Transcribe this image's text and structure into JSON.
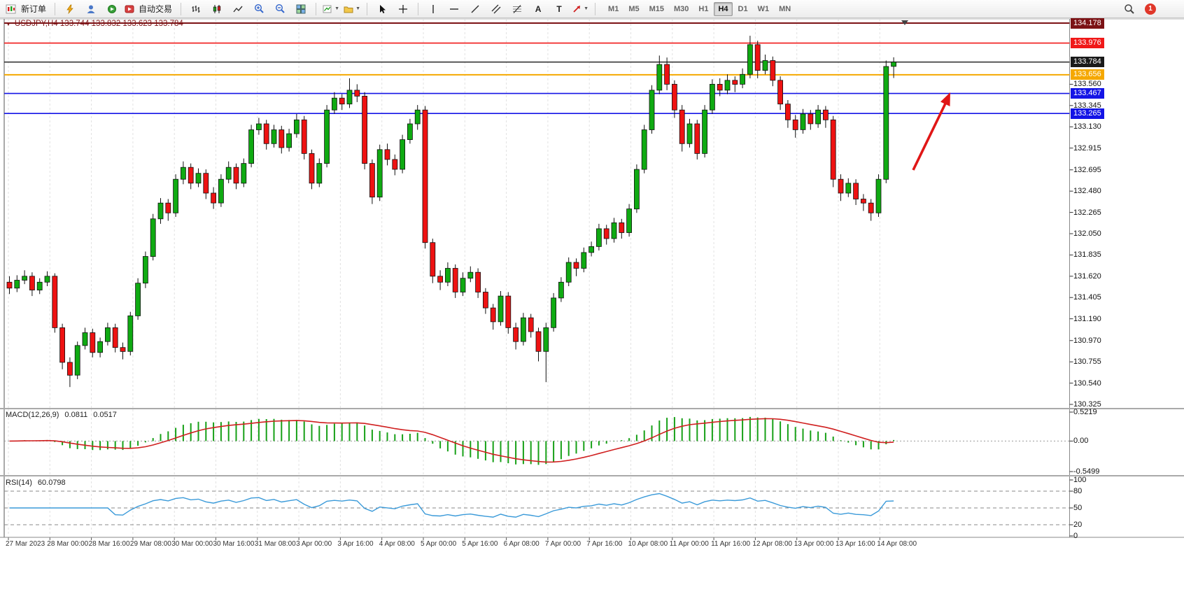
{
  "toolbar": {
    "new_order": "新订单",
    "auto_trading": "自动交易",
    "text_tool": "A",
    "label_tool": "T",
    "timeframes": [
      "M1",
      "M5",
      "M15",
      "M30",
      "H1",
      "H4",
      "D1",
      "W1",
      "MN"
    ],
    "active_timeframe": "H4",
    "notification_count": "1"
  },
  "chart_data": {
    "type": "candlestick",
    "symbol": "USDJPY",
    "timeframe": "H4",
    "title": "USDJPY,H4 133.744 133.832 133.623 133.784",
    "ohlc_display": {
      "open": "133.744",
      "high": "133.832",
      "low": "133.623",
      "close": "133.784"
    },
    "ylim": [
      130.325,
      134.178
    ],
    "price_ticks": [
      "133.560",
      "133.345",
      "133.130",
      "132.915",
      "132.695",
      "132.480",
      "132.265",
      "132.050",
      "131.835",
      "131.620",
      "131.405",
      "131.190",
      "130.970",
      "130.755",
      "130.540",
      "130.325"
    ],
    "time_labels": [
      "27 Mar 2023",
      "28 Mar 00:00",
      "28 Mar 16:00",
      "29 Mar 08:00",
      "30 Mar 00:00",
      "30 Mar 16:00",
      "31 Mar 08:00",
      "3 Apr 00:00",
      "3 Apr 16:00",
      "4 Apr 08:00",
      "5 Apr 00:00",
      "5 Apr 16:00",
      "6 Apr 08:00",
      "7 Apr 00:00",
      "7 Apr 16:00",
      "10 Apr 08:00",
      "11 Apr 00:00",
      "11 Apr 16:00",
      "12 Apr 08:00",
      "13 Apr 00:00",
      "13 Apr 16:00",
      "14 Apr 08:00"
    ],
    "level_lines": [
      {
        "price": 134.178,
        "label": "134.178",
        "color": "#7c1215",
        "width": 2
      },
      {
        "price": 133.976,
        "label": "133.976",
        "color": "#f01818",
        "width": 1.6
      },
      {
        "price": 133.784,
        "label": "133.784",
        "color": "#1a1a1a",
        "width": 1.4
      },
      {
        "price": 133.656,
        "label": "133.656",
        "color": "#f5a800",
        "width": 2
      },
      {
        "price": 133.467,
        "label": "133.467",
        "color": "#1414e6",
        "width": 1.6
      },
      {
        "price": 133.265,
        "label": "133.265",
        "color": "#1414e6",
        "width": 1.6
      }
    ],
    "colors": {
      "up": "#0faa12",
      "down": "#ee1212",
      "macd_histogram": "#17a017",
      "macd_signal": "#d02020",
      "rsi_line": "#3a9ad9",
      "grid": "#e2e2e2"
    },
    "candles": [
      [
        131.56,
        131.62,
        131.44,
        131.5
      ],
      [
        131.5,
        131.63,
        131.46,
        131.58
      ],
      [
        131.58,
        131.68,
        131.54,
        131.62
      ],
      [
        131.62,
        131.66,
        131.42,
        131.48
      ],
      [
        131.48,
        131.6,
        131.44,
        131.56
      ],
      [
        131.56,
        131.67,
        131.52,
        131.62
      ],
      [
        131.62,
        131.65,
        131.05,
        131.1
      ],
      [
        131.1,
        131.14,
        130.68,
        130.75
      ],
      [
        130.75,
        130.8,
        130.5,
        130.62
      ],
      [
        130.62,
        130.96,
        130.58,
        130.92
      ],
      [
        130.92,
        131.1,
        130.88,
        131.05
      ],
      [
        131.05,
        131.09,
        130.8,
        130.85
      ],
      [
        130.85,
        131.0,
        130.8,
        130.96
      ],
      [
        130.96,
        131.15,
        130.92,
        131.1
      ],
      [
        131.1,
        131.14,
        130.85,
        130.9
      ],
      [
        130.9,
        130.95,
        130.78,
        130.86
      ],
      [
        130.86,
        131.26,
        130.82,
        131.22
      ],
      [
        131.22,
        131.6,
        131.18,
        131.55
      ],
      [
        131.55,
        131.87,
        131.5,
        131.82
      ],
      [
        131.82,
        132.25,
        131.78,
        132.2
      ],
      [
        132.2,
        132.41,
        132.15,
        132.36
      ],
      [
        132.36,
        132.4,
        132.18,
        132.26
      ],
      [
        132.26,
        132.65,
        132.22,
        132.6
      ],
      [
        132.6,
        132.78,
        132.55,
        132.72
      ],
      [
        132.72,
        132.76,
        132.5,
        132.56
      ],
      [
        132.56,
        132.71,
        132.52,
        132.66
      ],
      [
        132.66,
        132.7,
        132.4,
        132.46
      ],
      [
        132.46,
        132.52,
        132.3,
        132.36
      ],
      [
        132.36,
        132.65,
        132.32,
        132.6
      ],
      [
        132.6,
        132.78,
        132.56,
        132.72
      ],
      [
        132.72,
        132.76,
        132.5,
        132.56
      ],
      [
        132.56,
        132.81,
        132.52,
        132.76
      ],
      [
        132.76,
        133.15,
        132.72,
        133.1
      ],
      [
        133.1,
        133.22,
        133.05,
        133.16
      ],
      [
        133.16,
        133.2,
        132.9,
        132.96
      ],
      [
        132.96,
        133.15,
        132.92,
        133.1
      ],
      [
        133.1,
        133.14,
        132.86,
        132.92
      ],
      [
        132.92,
        133.11,
        132.88,
        133.06
      ],
      [
        133.06,
        133.26,
        133.02,
        133.2
      ],
      [
        133.2,
        133.24,
        132.8,
        132.86
      ],
      [
        132.86,
        132.9,
        132.5,
        132.56
      ],
      [
        132.56,
        132.81,
        132.52,
        132.76
      ],
      [
        132.76,
        133.35,
        132.72,
        133.3
      ],
      [
        133.3,
        133.48,
        133.26,
        133.42
      ],
      [
        133.42,
        133.46,
        133.3,
        133.36
      ],
      [
        133.36,
        133.62,
        133.32,
        133.5
      ],
      [
        133.5,
        133.56,
        133.38,
        133.44
      ],
      [
        133.44,
        133.48,
        132.7,
        132.76
      ],
      [
        132.76,
        132.8,
        132.35,
        132.42
      ],
      [
        132.42,
        132.95,
        132.38,
        132.9
      ],
      [
        132.9,
        132.96,
        132.74,
        132.8
      ],
      [
        132.8,
        132.85,
        132.64,
        132.7
      ],
      [
        132.7,
        133.05,
        132.66,
        133.0
      ],
      [
        133.0,
        133.21,
        132.96,
        133.16
      ],
      [
        133.16,
        133.35,
        133.1,
        133.3
      ],
      [
        133.3,
        133.34,
        131.9,
        131.96
      ],
      [
        131.96,
        132.0,
        131.55,
        131.62
      ],
      [
        131.62,
        131.68,
        131.48,
        131.56
      ],
      [
        131.56,
        131.76,
        131.52,
        131.7
      ],
      [
        131.7,
        131.74,
        131.4,
        131.46
      ],
      [
        131.46,
        131.66,
        131.42,
        131.6
      ],
      [
        131.6,
        131.72,
        131.56,
        131.66
      ],
      [
        131.66,
        131.7,
        131.4,
        131.46
      ],
      [
        131.46,
        131.5,
        131.24,
        131.3
      ],
      [
        131.3,
        131.34,
        131.08,
        131.16
      ],
      [
        131.16,
        131.47,
        131.12,
        131.42
      ],
      [
        131.42,
        131.46,
        131.04,
        131.1
      ],
      [
        131.1,
        131.15,
        130.88,
        130.96
      ],
      [
        130.96,
        131.25,
        130.92,
        131.2
      ],
      [
        131.2,
        131.24,
        131.0,
        131.06
      ],
      [
        131.06,
        131.1,
        130.76,
        130.86
      ],
      [
        130.86,
        131.15,
        130.55,
        131.1
      ],
      [
        131.1,
        131.45,
        131.06,
        131.4
      ],
      [
        131.4,
        131.61,
        131.36,
        131.56
      ],
      [
        131.56,
        131.81,
        131.52,
        131.76
      ],
      [
        131.76,
        131.8,
        131.62,
        131.7
      ],
      [
        131.7,
        131.91,
        131.66,
        131.86
      ],
      [
        131.86,
        131.97,
        131.82,
        131.92
      ],
      [
        131.92,
        132.15,
        131.88,
        132.1
      ],
      [
        132.1,
        132.14,
        131.94,
        132.0
      ],
      [
        132.0,
        132.21,
        131.96,
        132.16
      ],
      [
        132.16,
        132.2,
        132.0,
        132.06
      ],
      [
        132.06,
        132.35,
        132.02,
        132.3
      ],
      [
        132.3,
        132.75,
        132.26,
        132.7
      ],
      [
        132.7,
        133.15,
        132.66,
        133.1
      ],
      [
        133.1,
        133.55,
        133.06,
        133.5
      ],
      [
        133.5,
        133.85,
        133.46,
        133.76
      ],
      [
        133.76,
        133.83,
        133.5,
        133.56
      ],
      [
        133.56,
        133.6,
        133.22,
        133.3
      ],
      [
        133.3,
        133.35,
        132.88,
        132.96
      ],
      [
        132.96,
        133.21,
        132.92,
        133.16
      ],
      [
        133.16,
        133.2,
        132.8,
        132.86
      ],
      [
        132.86,
        133.35,
        132.82,
        133.3
      ],
      [
        133.3,
        133.61,
        133.26,
        133.56
      ],
      [
        133.56,
        133.62,
        133.44,
        133.5
      ],
      [
        133.5,
        133.66,
        133.46,
        133.6
      ],
      [
        133.6,
        133.64,
        133.48,
        133.56
      ],
      [
        133.56,
        133.72,
        133.52,
        133.66
      ],
      [
        133.66,
        134.05,
        133.62,
        133.96
      ],
      [
        133.96,
        134.0,
        133.62,
        133.7
      ],
      [
        133.7,
        133.86,
        133.66,
        133.8
      ],
      [
        133.8,
        133.84,
        133.54,
        133.6
      ],
      [
        133.6,
        133.64,
        133.3,
        133.36
      ],
      [
        133.36,
        133.4,
        133.12,
        133.2
      ],
      [
        133.2,
        133.25,
        133.02,
        133.1
      ],
      [
        133.1,
        133.31,
        133.06,
        133.26
      ],
      [
        133.26,
        133.3,
        133.1,
        133.16
      ],
      [
        133.16,
        133.35,
        133.12,
        133.3
      ],
      [
        133.3,
        133.34,
        133.12,
        133.2
      ],
      [
        133.2,
        133.24,
        132.52,
        132.6
      ],
      [
        132.6,
        132.65,
        132.38,
        132.46
      ],
      [
        132.46,
        132.61,
        132.42,
        132.56
      ],
      [
        132.56,
        132.6,
        132.34,
        132.4
      ],
      [
        132.4,
        132.45,
        132.28,
        132.36
      ],
      [
        132.36,
        132.4,
        132.18,
        132.26
      ],
      [
        132.26,
        132.65,
        132.22,
        132.6
      ],
      [
        132.6,
        133.8,
        132.56,
        133.74
      ],
      [
        133.74,
        133.832,
        133.623,
        133.784
      ]
    ],
    "indicators": {
      "macd": {
        "label": "MACD(12,26,9)",
        "main": "0.0811",
        "signal": "0.0517",
        "params": [
          12,
          26,
          9
        ],
        "ylim": [
          -0.5499,
          0.5219
        ],
        "axis": [
          "0.5219",
          "0.00",
          "-0.5499"
        ]
      },
      "rsi": {
        "label": "RSI(14)",
        "value": "60.0798",
        "params": [
          14
        ],
        "ylim": [
          0,
          100
        ],
        "axis": [
          "100",
          "80",
          "50",
          "20",
          "0"
        ],
        "levels": [
          80,
          50,
          20
        ]
      }
    }
  }
}
